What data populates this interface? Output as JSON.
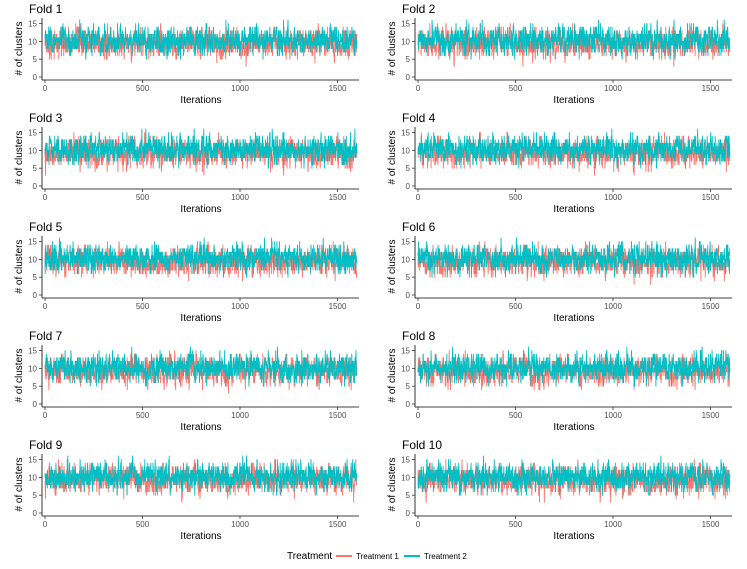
{
  "chart_data": {
    "type": "line",
    "layout": "small-multiples",
    "xlabel": "Iterations",
    "ylabel": "# of clusters",
    "xlim": [
      0,
      1600
    ],
    "ylim": [
      0,
      16
    ],
    "x_ticks": [
      0,
      500,
      1000,
      1500
    ],
    "x_tick_labels": [
      "0",
      "500",
      "1000",
      "1500"
    ],
    "y_ticks": [
      0,
      5,
      10,
      15
    ],
    "y_tick_labels": [
      "0",
      "5",
      "10",
      "15"
    ],
    "n_iterations": 1600,
    "legend": {
      "title": "Treatment",
      "position": "bottom",
      "entries": [
        {
          "name": "Treatment 1",
          "color": "#F8766D"
        },
        {
          "name": "Treatment 2",
          "color": "#00BFC4"
        }
      ]
    },
    "series_summary": [
      {
        "name": "Treatment 1",
        "color": "#F8766D",
        "approx_mean": 9.3,
        "approx_range": [
          3,
          15
        ]
      },
      {
        "name": "Treatment 2",
        "color": "#00BFC4",
        "approx_mean": 10.3,
        "approx_range": [
          5,
          16
        ]
      }
    ],
    "panels": [
      {
        "title": "Fold 1"
      },
      {
        "title": "Fold 2"
      },
      {
        "title": "Fold 3"
      },
      {
        "title": "Fold 4"
      },
      {
        "title": "Fold 5"
      },
      {
        "title": "Fold 6"
      },
      {
        "title": "Fold 7"
      },
      {
        "title": "Fold 8"
      },
      {
        "title": "Fold 9"
      },
      {
        "title": "Fold 10"
      }
    ]
  }
}
